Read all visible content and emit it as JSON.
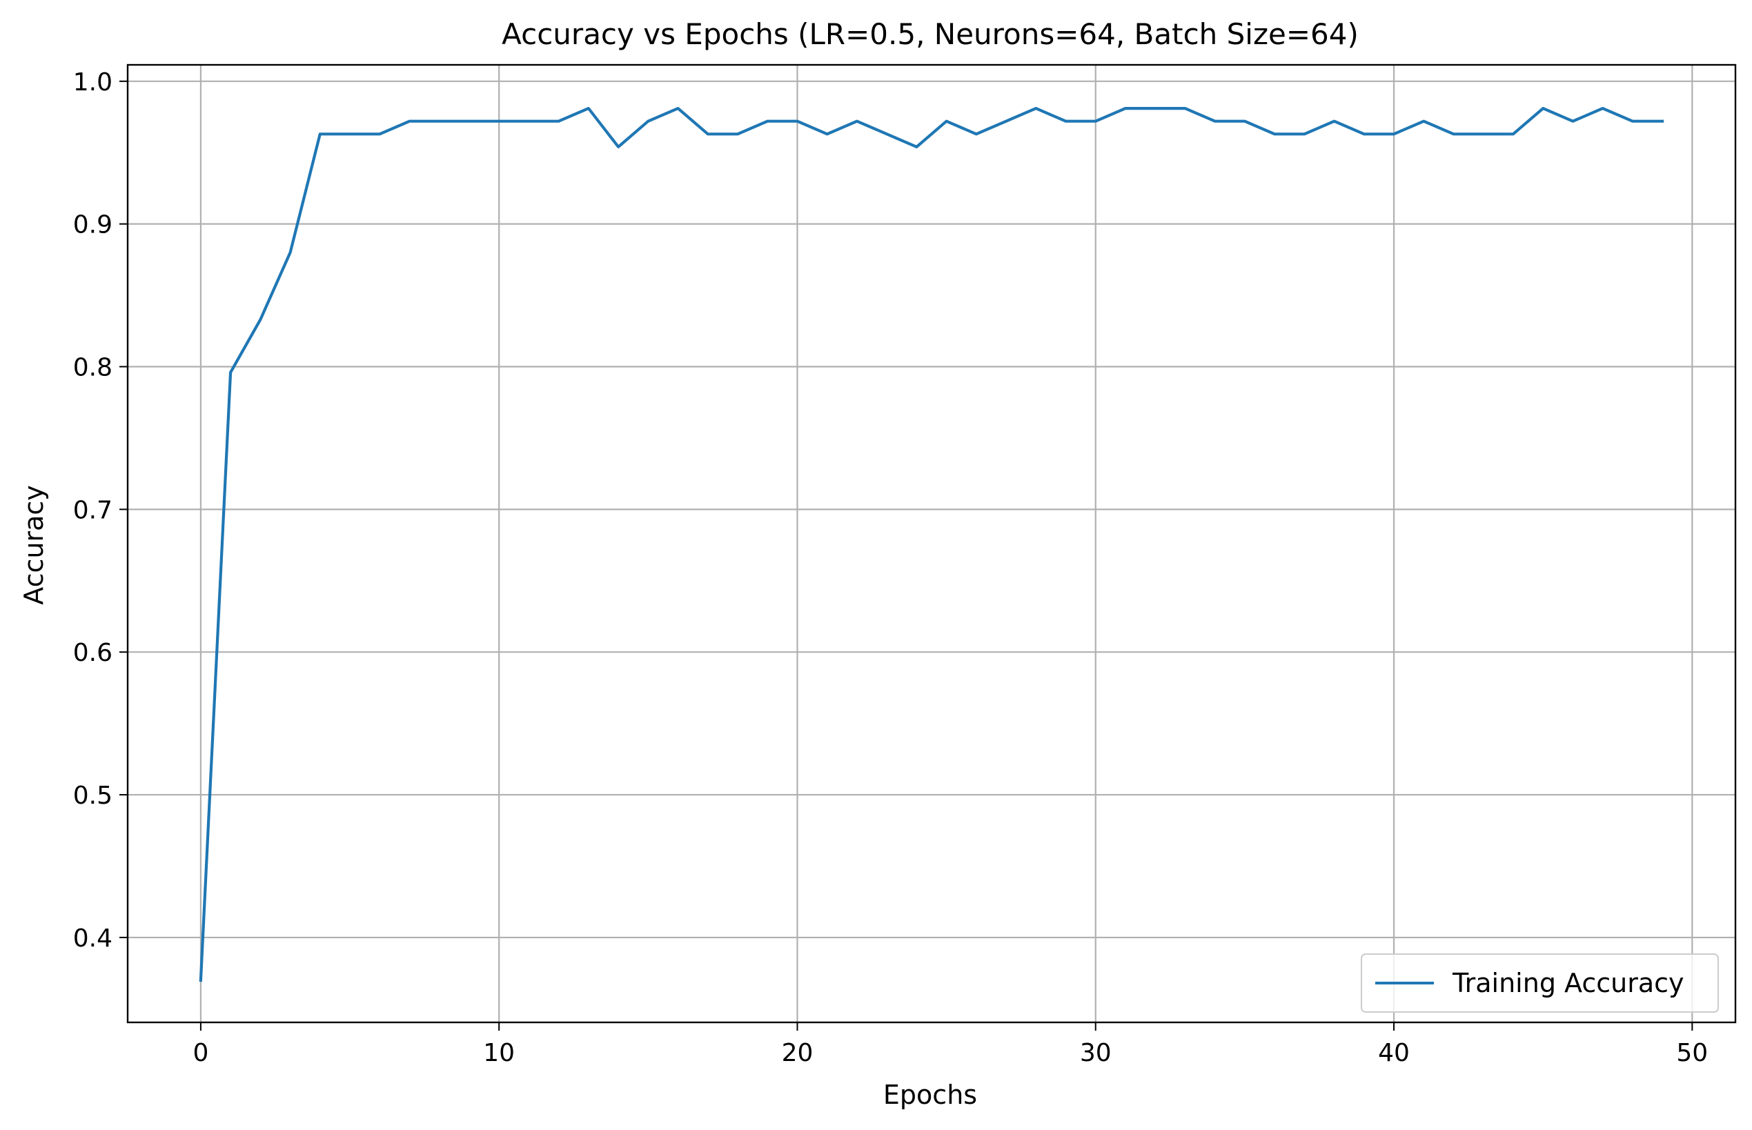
{
  "chart_data": {
    "type": "line",
    "title": "Accuracy vs Epochs (LR=0.5, Neurons=64, Batch Size=64)",
    "xlabel": "Epochs",
    "ylabel": "Accuracy",
    "xlim": [
      -2.45,
      51.45
    ],
    "ylim": [
      0.3405,
      1.0115
    ],
    "xticks": [
      0,
      10,
      20,
      30,
      40,
      50
    ],
    "yticks": [
      0.4,
      0.5,
      0.6,
      0.7,
      0.8,
      0.9,
      1.0
    ],
    "xtick_labels": [
      "0",
      "10",
      "20",
      "30",
      "40",
      "50"
    ],
    "ytick_labels": [
      "0.4",
      "0.5",
      "0.6",
      "0.7",
      "0.8",
      "0.9",
      "1.0"
    ],
    "grid": true,
    "legend_position": "lower-right",
    "series": [
      {
        "name": "Training Accuracy",
        "color": "#1f77b4",
        "x": [
          0,
          1,
          2,
          3,
          4,
          5,
          6,
          7,
          8,
          9,
          10,
          11,
          12,
          13,
          14,
          15,
          16,
          17,
          18,
          19,
          20,
          21,
          22,
          23,
          24,
          25,
          26,
          27,
          28,
          29,
          30,
          31,
          32,
          33,
          34,
          35,
          36,
          37,
          38,
          39,
          40,
          41,
          42,
          43,
          44,
          45,
          46,
          47,
          48,
          49
        ],
        "y": [
          0.37,
          0.796,
          0.833,
          0.88,
          0.963,
          0.963,
          0.963,
          0.972,
          0.972,
          0.972,
          0.972,
          0.972,
          0.972,
          0.981,
          0.954,
          0.972,
          0.981,
          0.963,
          0.963,
          0.972,
          0.972,
          0.963,
          0.972,
          0.963,
          0.954,
          0.972,
          0.963,
          0.972,
          0.981,
          0.972,
          0.972,
          0.981,
          0.981,
          0.981,
          0.972,
          0.972,
          0.963,
          0.963,
          0.972,
          0.963,
          0.963,
          0.972,
          0.963,
          0.963,
          0.963,
          0.981,
          0.972,
          0.981,
          0.972,
          0.972
        ]
      }
    ]
  }
}
